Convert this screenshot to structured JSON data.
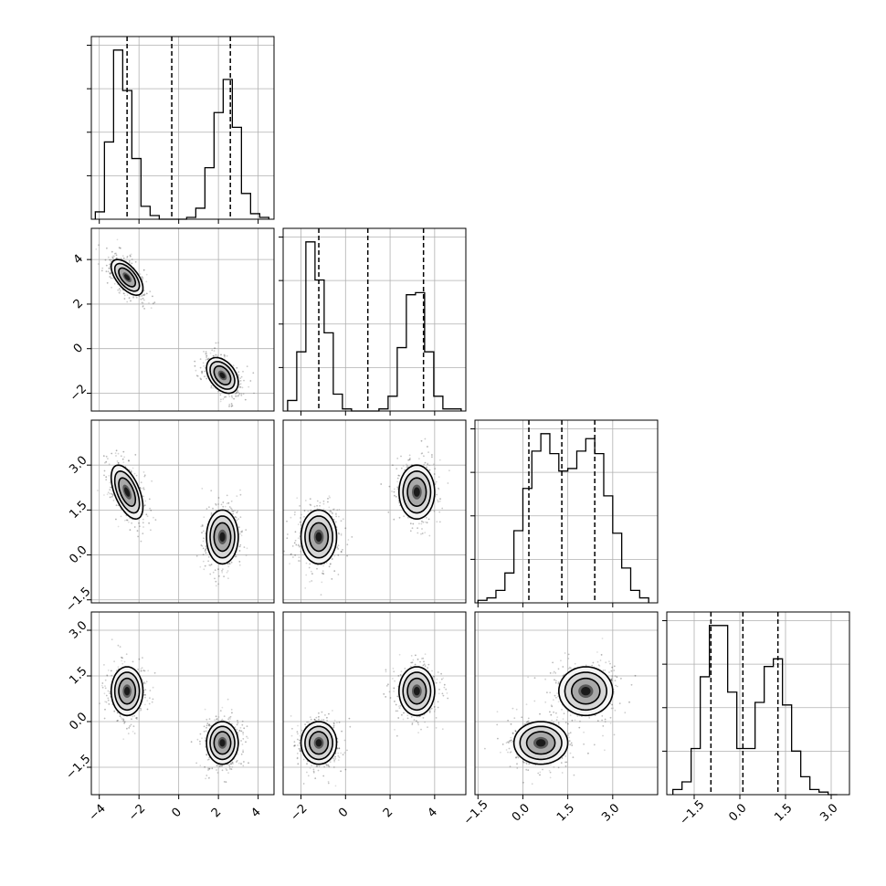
{
  "chart_data": {
    "type": "corner",
    "grid": true,
    "parameters": [
      {
        "index": 0,
        "range": [
          -4.4,
          4.8
        ],
        "ticks": [
          -4,
          -2,
          0,
          2,
          4
        ],
        "tick_labels": [
          "−4",
          "−2",
          "0",
          "2",
          "4"
        ],
        "quantiles": [
          -2.6,
          -0.35,
          2.6
        ],
        "bin_edges": [
          -4.2,
          -3.74,
          -3.28,
          -2.82,
          -2.36,
          -1.9,
          -1.44,
          -0.98,
          -0.52,
          -0.06,
          0.4,
          0.86,
          1.32,
          1.78,
          2.24,
          2.7,
          3.16,
          3.62,
          4.08,
          4.54
        ],
        "hist_counts": [
          0.04,
          0.42,
          0.92,
          0.7,
          0.33,
          0.07,
          0.02,
          0,
          0,
          0,
          0.01,
          0.06,
          0.28,
          0.58,
          0.76,
          0.5,
          0.14,
          0.03,
          0.01
        ]
      },
      {
        "index": 1,
        "range": [
          -2.8,
          5.4
        ],
        "ticks": [
          -2,
          0,
          2,
          4
        ],
        "tick_labels": [
          "−2",
          "0",
          "2",
          "4"
        ],
        "quantiles": [
          -1.2,
          1.0,
          3.5
        ],
        "bin_edges": [
          -2.6,
          -2.19,
          -1.78,
          -1.37,
          -0.96,
          -0.55,
          -0.14,
          0.27,
          0.68,
          1.09,
          1.5,
          1.91,
          2.32,
          2.73,
          3.14,
          3.55,
          3.96,
          4.37,
          4.78,
          5.19
        ],
        "hist_counts": [
          0.05,
          0.28,
          0.8,
          0.62,
          0.37,
          0.08,
          0.01,
          0,
          0,
          0,
          0.01,
          0.07,
          0.3,
          0.55,
          0.56,
          0.28,
          0.07,
          0.01,
          0.01
        ]
      },
      {
        "index": 2,
        "range": [
          -1.6,
          4.5
        ],
        "ticks": [
          -1.5,
          0.0,
          1.5,
          3.0
        ],
        "tick_labels": [
          "−1.5",
          "0.0",
          "1.5",
          "3.0"
        ],
        "quantiles": [
          0.2,
          1.3,
          2.4
        ],
        "bin_edges": [
          -1.5,
          -1.2,
          -0.9,
          -0.6,
          -0.3,
          0.0,
          0.3,
          0.6,
          0.9,
          1.2,
          1.5,
          1.8,
          2.1,
          2.4,
          2.7,
          3.0,
          3.3,
          3.6,
          3.9,
          4.2
        ],
        "hist_counts": [
          0.01,
          0.02,
          0.05,
          0.12,
          0.29,
          0.46,
          0.61,
          0.68,
          0.6,
          0.53,
          0.54,
          0.61,
          0.66,
          0.6,
          0.43,
          0.28,
          0.14,
          0.05,
          0.02
        ]
      },
      {
        "index": 3,
        "range": [
          -2.4,
          3.6
        ],
        "ticks": [
          -1.5,
          0.0,
          1.5,
          3.0
        ],
        "tick_labels": [
          "−1.5",
          "0.0",
          "1.5",
          "3.0"
        ],
        "quantiles": [
          -0.95,
          0.1,
          1.25
        ],
        "bin_edges": [
          -2.2,
          -1.9,
          -1.6,
          -1.3,
          -1.0,
          -0.7,
          -0.4,
          -0.1,
          0.2,
          0.5,
          0.8,
          1.1,
          1.4,
          1.7,
          2.0,
          2.3,
          2.6,
          2.9,
          3.2
        ],
        "hist_counts": [
          0.02,
          0.05,
          0.18,
          0.46,
          0.66,
          0.66,
          0.4,
          0.18,
          0.18,
          0.36,
          0.5,
          0.53,
          0.35,
          0.17,
          0.07,
          0.02,
          0.01,
          0.0
        ]
      }
    ],
    "modes": [
      {
        "center": [
          -2.6,
          3.2,
          2.1,
          1.0
        ],
        "sd": [
          0.4,
          0.4,
          0.45,
          0.4
        ],
        "corr": {
          "0-1": -0.6,
          "0-2": -0.55,
          "1-2": 0.0,
          "2-3": 0.0
        }
      },
      {
        "center": [
          2.2,
          -1.2,
          0.6,
          -0.7
        ],
        "sd": [
          0.4,
          0.4,
          0.45,
          0.35
        ],
        "corr": {
          "0-1": -0.4
        }
      }
    ]
  }
}
